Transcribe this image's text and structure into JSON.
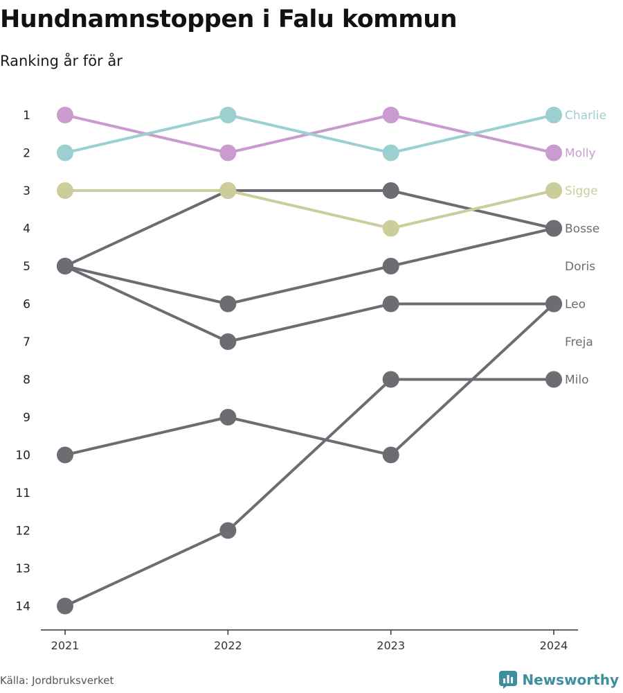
{
  "header": {
    "title": "Hundnamnstoppen i Falu kommun",
    "subtitle": "Ranking år för år"
  },
  "footer": {
    "source": "Källa: Jordbruksverket",
    "brand": "Newsworthy"
  },
  "icons": {
    "brand": "newsworthy-logo-icon"
  },
  "colors": {
    "Charlie": "#9ccfcf",
    "Molly": "#c99bcf",
    "Sigge": "#cccd9a",
    "other": "#6d6c72",
    "axis": "#333333"
  },
  "chart_data": {
    "type": "line",
    "x": [
      2021,
      2022,
      2023,
      2024
    ],
    "ylim": [
      1,
      14
    ],
    "y_reversed": true,
    "y_ticks": [
      1,
      2,
      3,
      4,
      5,
      6,
      7,
      8,
      9,
      10,
      11,
      12,
      13,
      14
    ],
    "grid": false,
    "legend": "end-labels-right",
    "end_labels": [
      {
        "label": "Charlie",
        "rank": 1
      },
      {
        "label": "Molly",
        "rank": 2
      },
      {
        "label": "Sigge",
        "rank": 3
      },
      {
        "label": "Bosse",
        "rank": 4
      },
      {
        "label": "Doris",
        "rank": 5
      },
      {
        "label": "Leo",
        "rank": 6
      },
      {
        "label": "Freja",
        "rank": 7
      },
      {
        "label": "Milo",
        "rank": 8
      }
    ],
    "series": [
      {
        "name": "Bosse",
        "values": [
          5,
          3,
          3,
          4
        ]
      },
      {
        "name": "Doris",
        "values": [
          5,
          6,
          5,
          4
        ]
      },
      {
        "name": "Leo",
        "values": [
          10,
          9,
          10,
          6
        ]
      },
      {
        "name": "Freja",
        "values": [
          5,
          7,
          6,
          6
        ]
      },
      {
        "name": "Milo",
        "values": [
          14,
          12,
          8,
          8
        ]
      },
      {
        "name": "Sigge",
        "values": [
          3,
          3,
          4,
          3
        ]
      },
      {
        "name": "Molly",
        "values": [
          1,
          2,
          1,
          2
        ]
      },
      {
        "name": "Charlie",
        "values": [
          2,
          1,
          2,
          1
        ]
      }
    ]
  }
}
